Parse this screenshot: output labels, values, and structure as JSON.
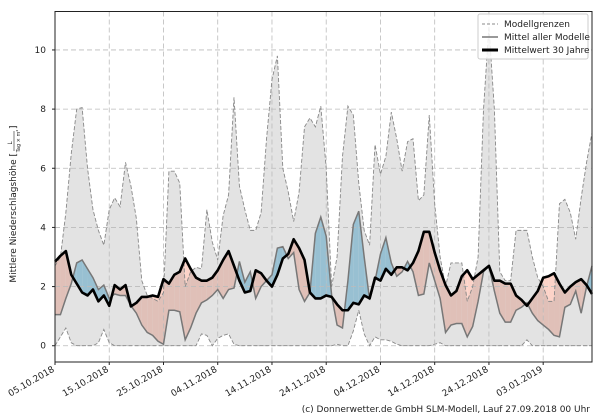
{
  "chart_data": {
    "type": "area",
    "title": "",
    "xlabel": "",
    "ylabel": "Mittlere Niederschlagshöhe",
    "yunit_numerator": "L",
    "yunit_denominator": "Tag × m²",
    "ylim": [
      -0.55,
      11.3
    ],
    "xlim": [
      0,
      99
    ],
    "yticks": [
      0,
      2,
      4,
      6,
      8,
      10
    ],
    "xticks": [
      {
        "day": 0,
        "label": "05.10.2018"
      },
      {
        "day": 10,
        "label": "15.10.2018"
      },
      {
        "day": 20,
        "label": "25.10.2018"
      },
      {
        "day": 30,
        "label": "04.11.2018"
      },
      {
        "day": 40,
        "label": "14.11.2018"
      },
      {
        "day": 50,
        "label": "24.11.2018"
      },
      {
        "day": 60,
        "label": "04.12.2018"
      },
      {
        "day": 70,
        "label": "14.12.2018"
      },
      {
        "day": 80,
        "label": "24.12.2018"
      },
      {
        "day": 90,
        "label": "03.01.2019"
      }
    ],
    "grid": true,
    "legend_position": "top-right",
    "legend": [
      "Modellgrenzen",
      "Mittel aller Modelle",
      "Mittelwert 30 Jahre"
    ],
    "colors": {
      "above": "#9fd3ea",
      "below": "#fcd3c8",
      "band": "#808080",
      "model": "#777777",
      "clim": "#000000"
    },
    "series": [
      {
        "name": "Modellgrenzen oben",
        "values": [
          2.7,
          3.0,
          4.5,
          6.5,
          8.0,
          8.05,
          6.0,
          4.6,
          3.9,
          3.4,
          4.6,
          5.0,
          4.7,
          6.2,
          5.4,
          4.3,
          2.2,
          1.7,
          1.6,
          1.5,
          1.8,
          5.9,
          5.9,
          5.5,
          2.0,
          2.5,
          2.65,
          2.6,
          4.6,
          3.5,
          2.9,
          4.4,
          5.1,
          8.4,
          5.4,
          4.6,
          3.9,
          3.9,
          4.5,
          7.0,
          9.0,
          9.8,
          6.0,
          5.2,
          4.2,
          5.2,
          7.4,
          7.7,
          7.4,
          8.1,
          6.0,
          2.0,
          3.0,
          6.4,
          8.1,
          7.8,
          5.5,
          3.9,
          3.4,
          6.8,
          5.8,
          6.4,
          7.9,
          7.0,
          5.9,
          6.9,
          7.0,
          4.9,
          5.1,
          7.8,
          4.8,
          3.0,
          2.0,
          2.8,
          2.8,
          2.8,
          1.5,
          2.0,
          3.0,
          8.0,
          10.8,
          8.0,
          2.5,
          2.2,
          2.2,
          3.9,
          3.9,
          3.9,
          3.0,
          2.3,
          2.0,
          1.5,
          1.5,
          4.8,
          4.95,
          4.5,
          3.6,
          5.0,
          6.2,
          7.2
        ]
      },
      {
        "name": "Modellgrenzen unten",
        "values": [
          0,
          0.3,
          0.6,
          0.1,
          0,
          0,
          0,
          0,
          0.1,
          0.55,
          0.1,
          0,
          0,
          0,
          0,
          0,
          0,
          0,
          0,
          0,
          0,
          0,
          0,
          0,
          0,
          0,
          0,
          0.4,
          0.35,
          0,
          0.25,
          0.35,
          0.4,
          0.05,
          0,
          0,
          0,
          0,
          0,
          0,
          0,
          0,
          0,
          0,
          0,
          0,
          0,
          0,
          0,
          0,
          0,
          0,
          0.05,
          0,
          0,
          0.5,
          1.2,
          0.4,
          0,
          0.3,
          0.2,
          0.2,
          0.15,
          0.05,
          0,
          0,
          0,
          0,
          0,
          0,
          0.05,
          0.1,
          0,
          0,
          0,
          0,
          0,
          0,
          0,
          0,
          0,
          0,
          0,
          0,
          0,
          0,
          0,
          0.2,
          0,
          0,
          0,
          0,
          0,
          0,
          0,
          0,
          0,
          0,
          0,
          0
        ]
      },
      {
        "name": "Mittel aller Modelle",
        "values": [
          1.05,
          1.05,
          1.6,
          2.1,
          2.8,
          2.9,
          2.6,
          2.3,
          1.9,
          2.05,
          1.6,
          1.75,
          1.7,
          1.7,
          1.35,
          1.1,
          0.7,
          0.45,
          0.35,
          0.15,
          0.05,
          1.2,
          1.2,
          1.15,
          0.2,
          0.6,
          1.1,
          1.45,
          1.55,
          1.7,
          1.9,
          1.6,
          1.9,
          1.95,
          2.85,
          2.15,
          2.5,
          1.6,
          2.0,
          2.2,
          2.4,
          3.3,
          3.35,
          2.95,
          3.15,
          1.9,
          1.5,
          1.8,
          3.8,
          4.35,
          3.7,
          1.7,
          0.7,
          0.6,
          2.2,
          4.1,
          4.55,
          3.0,
          1.55,
          2.2,
          3.1,
          3.65,
          2.8,
          2.35,
          2.5,
          2.85,
          2.5,
          1.7,
          1.75,
          2.8,
          2.2,
          1.6,
          0.45,
          0.7,
          0.75,
          0.75,
          0.3,
          0.65,
          1.5,
          2.5,
          2.7,
          1.85,
          1.1,
          0.8,
          0.8,
          1.2,
          1.3,
          1.45,
          1.1,
          0.85,
          0.7,
          0.55,
          0.35,
          0.3,
          1.3,
          1.4,
          1.85,
          1.1,
          2.0,
          2.7
        ]
      },
      {
        "name": "Mittelwert 30 Jahre",
        "values": [
          2.84,
          3.04,
          3.2,
          2.4,
          2.1,
          1.8,
          1.7,
          1.9,
          1.5,
          1.7,
          1.35,
          2.05,
          1.9,
          2.05,
          1.33,
          1.45,
          1.65,
          1.65,
          1.7,
          1.65,
          2.25,
          2.1,
          2.4,
          2.5,
          2.95,
          2.6,
          2.3,
          2.2,
          2.2,
          2.3,
          2.55,
          2.9,
          3.2,
          2.7,
          2.2,
          1.8,
          1.85,
          2.55,
          2.45,
          2.2,
          2.0,
          2.4,
          2.95,
          3.1,
          3.6,
          3.3,
          2.9,
          1.8,
          1.6,
          1.6,
          1.7,
          1.65,
          1.4,
          1.2,
          1.2,
          1.45,
          1.4,
          1.7,
          1.6,
          2.3,
          2.2,
          2.6,
          2.4,
          2.65,
          2.65,
          2.55,
          2.8,
          3.2,
          3.85,
          3.85,
          3.15,
          2.55,
          2.05,
          1.7,
          1.85,
          2.35,
          2.55,
          2.25,
          2.4,
          2.55,
          2.7,
          2.2,
          2.2,
          2.1,
          2.1,
          1.7,
          1.55,
          1.35,
          1.6,
          1.85,
          2.3,
          2.35,
          2.45,
          2.1,
          1.8,
          2.0,
          2.15,
          2.25,
          2.05,
          1.75
        ]
      }
    ]
  },
  "footer": "(c) Donnerwetter.de GmbH SLM-Modell, Lauf 27.09.2018 00 Uhr"
}
